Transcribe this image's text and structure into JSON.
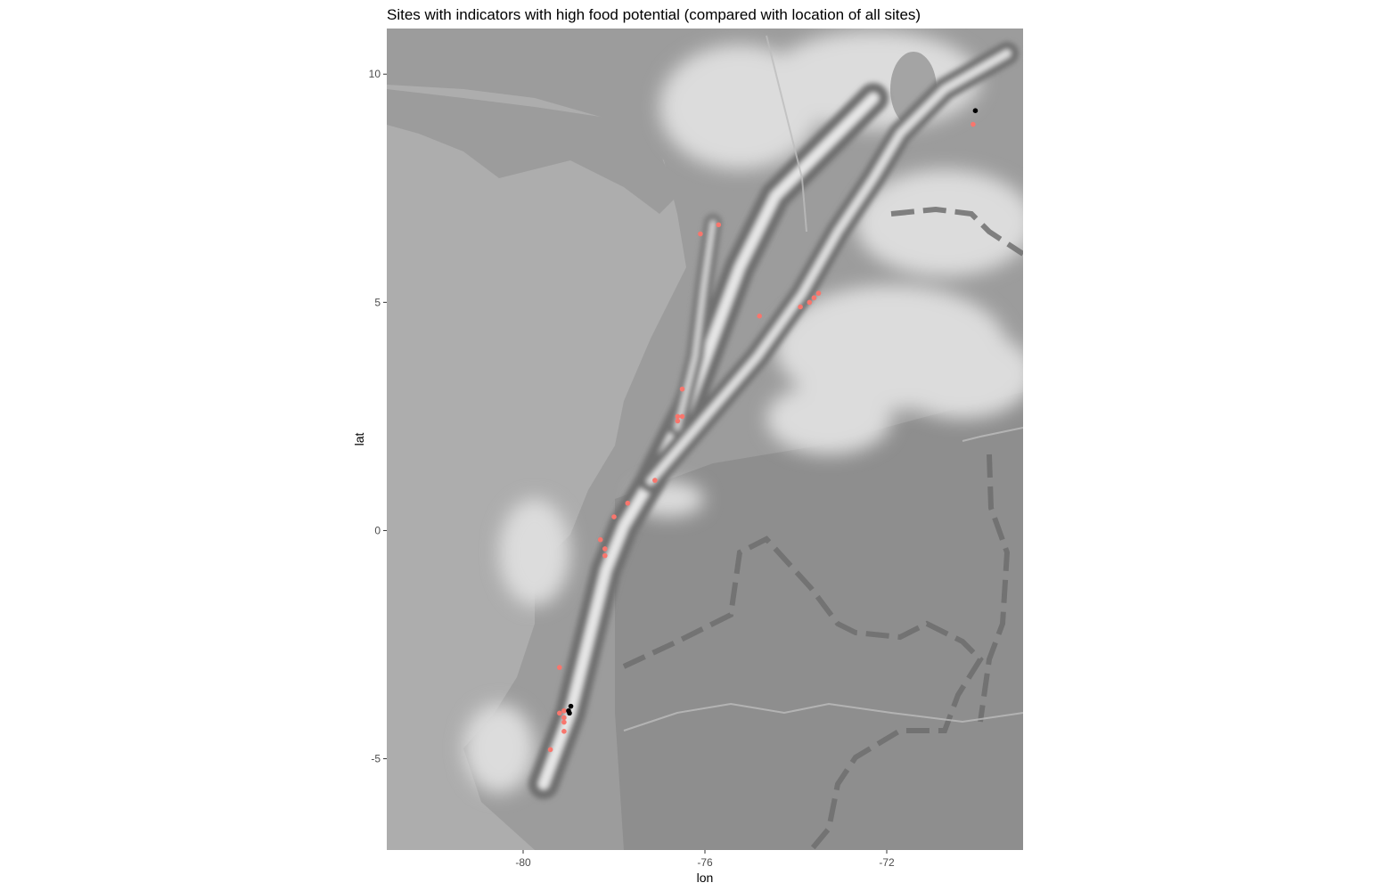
{
  "chart_data": {
    "type": "scatter",
    "title": "Sites with indicators with high food potential (compared with location of all sites)",
    "xlabel": "lon",
    "ylabel": "lat",
    "xlim": [
      -83,
      -69
    ],
    "ylim": [
      -7,
      11
    ],
    "x_ticks": [
      -80,
      -76,
      -72
    ],
    "y_ticks": [
      -5,
      0,
      5,
      10
    ],
    "x_tick_labels": [
      "-80",
      "-76",
      "-72"
    ],
    "y_tick_labels": [
      "-5",
      "0",
      "5",
      "10"
    ],
    "grid": false,
    "legend": "none",
    "background": "grayscale terrain map",
    "series": [
      {
        "color": "#f8766d",
        "points": [
          {
            "x": -70.1,
            "y": 8.9
          },
          {
            "x": -76.1,
            "y": 6.5
          },
          {
            "x": -75.7,
            "y": 6.7
          },
          {
            "x": -73.9,
            "y": 4.9
          },
          {
            "x": -73.7,
            "y": 5.0
          },
          {
            "x": -73.6,
            "y": 5.1
          },
          {
            "x": -73.5,
            "y": 5.2
          },
          {
            "x": -74.8,
            "y": 4.7
          },
          {
            "x": -76.5,
            "y": 3.1
          },
          {
            "x": -76.6,
            "y": 2.5
          },
          {
            "x": -76.6,
            "y": 2.4
          },
          {
            "x": -76.5,
            "y": 2.5
          },
          {
            "x": -77.1,
            "y": 1.1
          },
          {
            "x": -77.7,
            "y": 0.6
          },
          {
            "x": -78.0,
            "y": 0.3
          },
          {
            "x": -78.3,
            "y": -0.2
          },
          {
            "x": -78.2,
            "y": -0.4
          },
          {
            "x": -78.2,
            "y": -0.55
          },
          {
            "x": -79.2,
            "y": -3.0
          },
          {
            "x": -79.2,
            "y": -4.0
          },
          {
            "x": -79.1,
            "y": -3.95
          },
          {
            "x": -79.1,
            "y": -4.1
          },
          {
            "x": -79.1,
            "y": -4.2
          },
          {
            "x": -79.1,
            "y": -4.4
          },
          {
            "x": -79.4,
            "y": -4.8
          }
        ]
      },
      {
        "color": "#000000",
        "points": [
          {
            "x": -70.05,
            "y": 9.2
          },
          {
            "x": -78.95,
            "y": -3.85
          },
          {
            "x": -79.0,
            "y": -3.95
          },
          {
            "x": -78.98,
            "y": -4.0
          }
        ]
      }
    ]
  }
}
